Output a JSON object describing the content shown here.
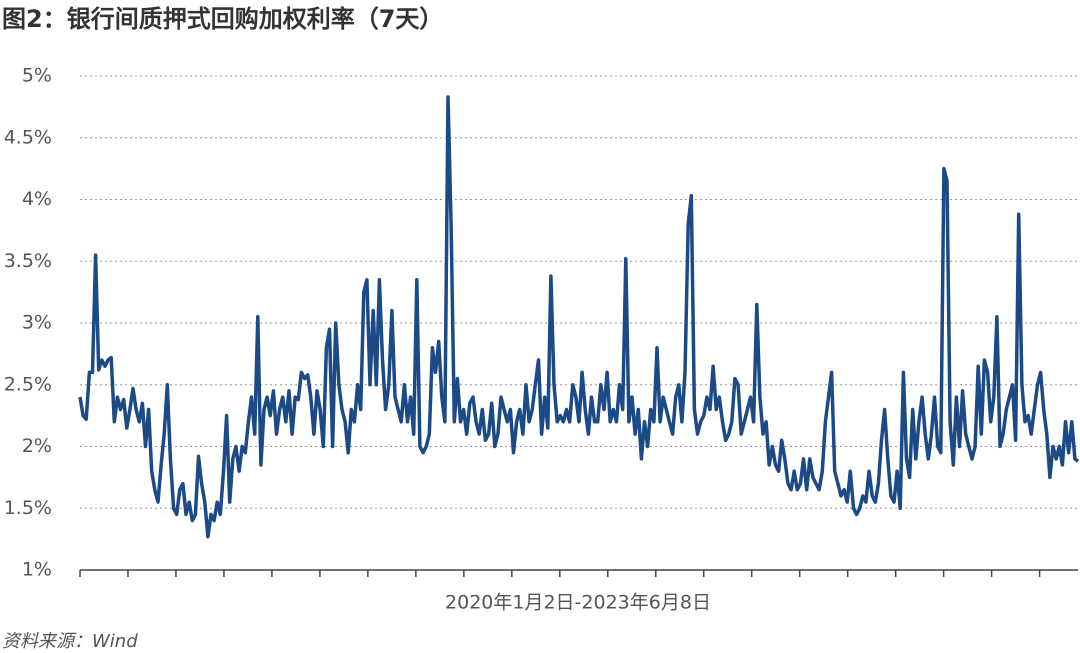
{
  "chart_data": {
    "type": "line",
    "title": "图2：银行间质押式回购加权利率（7天）",
    "x_label": "2020年1月2日-2023年6月8日",
    "source": "资料来源：Wind",
    "ylim": [
      1,
      5
    ],
    "yticks": [
      {
        "value": 1,
        "label": "1%"
      },
      {
        "value": 1.5,
        "label": "1.5%"
      },
      {
        "value": 2,
        "label": "2%"
      },
      {
        "value": 2.5,
        "label": "2.5%"
      },
      {
        "value": 3,
        "label": "3%"
      },
      {
        "value": 3.5,
        "label": "3.5%"
      },
      {
        "value": 4,
        "label": "4%"
      },
      {
        "value": 4.5,
        "label": "4.5%"
      },
      {
        "value": 5,
        "label": "5%"
      }
    ],
    "grid": true,
    "color": "#1b4a86",
    "values": [
      2.4,
      2.25,
      2.22,
      2.6,
      2.6,
      3.55,
      2.62,
      2.7,
      2.65,
      2.7,
      2.72,
      2.2,
      2.4,
      2.3,
      2.38,
      2.15,
      2.3,
      2.47,
      2.3,
      2.2,
      2.35,
      2.0,
      2.3,
      1.8,
      1.65,
      1.55,
      1.85,
      2.1,
      2.5,
      1.9,
      1.5,
      1.45,
      1.65,
      1.7,
      1.45,
      1.55,
      1.4,
      1.45,
      1.92,
      1.7,
      1.55,
      1.27,
      1.45,
      1.4,
      1.55,
      1.45,
      1.8,
      2.25,
      1.55,
      1.9,
      2.0,
      1.8,
      2.0,
      1.95,
      2.2,
      2.4,
      2.1,
      3.05,
      1.85,
      2.3,
      2.4,
      2.25,
      2.45,
      2.1,
      2.3,
      2.4,
      2.2,
      2.45,
      2.1,
      2.4,
      2.38,
      2.6,
      2.55,
      2.58,
      2.4,
      2.1,
      2.45,
      2.3,
      2.0,
      2.8,
      2.95,
      2.0,
      3.0,
      2.5,
      2.3,
      2.2,
      1.95,
      2.3,
      2.2,
      2.5,
      2.3,
      3.25,
      3.35,
      2.5,
      3.1,
      2.5,
      3.35,
      2.7,
      2.3,
      2.5,
      3.1,
      2.4,
      2.3,
      2.2,
      2.5,
      2.2,
      2.4,
      2.1,
      3.35,
      2.0,
      1.95,
      2.0,
      2.1,
      2.8,
      2.6,
      2.85,
      2.4,
      2.2,
      4.83,
      3.8,
      2.2,
      2.55,
      2.2,
      2.3,
      2.1,
      2.35,
      2.4,
      2.2,
      2.1,
      2.3,
      2.05,
      2.1,
      2.35,
      2.0,
      2.1,
      2.4,
      2.3,
      2.2,
      2.3,
      1.95,
      2.2,
      2.3,
      2.1,
      2.5,
      2.2,
      2.3,
      2.5,
      2.7,
      2.1,
      2.4,
      2.15,
      3.38,
      2.5,
      2.2,
      2.25,
      2.2,
      2.3,
      2.2,
      2.5,
      2.4,
      2.2,
      2.6,
      2.3,
      2.1,
      2.4,
      2.2,
      2.2,
      2.5,
      2.3,
      2.6,
      2.2,
      2.3,
      2.2,
      2.5,
      2.3,
      3.52,
      2.2,
      2.4,
      2.1,
      2.3,
      1.9,
      2.2,
      2.0,
      2.3,
      2.2,
      2.8,
      2.2,
      2.4,
      2.3,
      2.2,
      2.1,
      2.4,
      2.5,
      2.2,
      2.6,
      3.8,
      4.03,
      2.3,
      2.1,
      2.2,
      2.25,
      2.4,
      2.3,
      2.65,
      2.3,
      2.4,
      2.2,
      2.05,
      2.1,
      2.2,
      2.55,
      2.5,
      2.1,
      2.2,
      2.3,
      2.4,
      2.2,
      3.15,
      2.4,
      2.1,
      2.2,
      1.85,
      2.0,
      1.85,
      1.8,
      2.05,
      1.9,
      1.7,
      1.65,
      1.8,
      1.65,
      1.7,
      1.9,
      1.65,
      1.9,
      1.75,
      1.7,
      1.65,
      1.8,
      2.2,
      2.4,
      2.6,
      1.8,
      1.7,
      1.6,
      1.65,
      1.55,
      1.8,
      1.5,
      1.45,
      1.5,
      1.6,
      1.55,
      1.8,
      1.6,
      1.55,
      1.7,
      2.05,
      2.3,
      1.9,
      1.6,
      1.55,
      1.8,
      1.5,
      2.6,
      1.9,
      1.75,
      2.3,
      1.9,
      2.2,
      2.4,
      2.1,
      1.9,
      2.1,
      2.4,
      2.0,
      1.95,
      4.25,
      4.15,
      2.2,
      1.85,
      2.4,
      2.0,
      2.45,
      2.1,
      2.0,
      1.9,
      2.0,
      2.65,
      2.1,
      2.7,
      2.6,
      2.2,
      2.4,
      3.05,
      2.0,
      2.1,
      2.3,
      2.4,
      2.5,
      2.05,
      3.88,
      2.5,
      2.2,
      2.25,
      2.1,
      2.3,
      2.5,
      2.6,
      2.3,
      2.1,
      1.75,
      2.0,
      1.9,
      2.0,
      1.85,
      2.2,
      1.95,
      2.2,
      1.9,
      1.88
    ]
  }
}
